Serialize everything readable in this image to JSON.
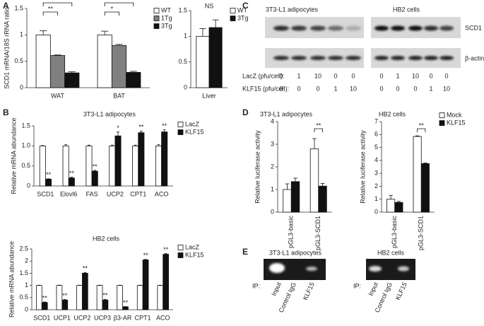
{
  "chart_data": [
    {
      "type": "bar",
      "panel": "A",
      "ylabel": "SCD1 mRNA/18S rRNA ratio",
      "categories": [
        "WAT",
        "BAT"
      ],
      "series": [
        {
          "name": "WT",
          "color": "#ffffff",
          "values": [
            1.0,
            1.0
          ],
          "errors": [
            0.08,
            0.07
          ]
        },
        {
          "name": "1Tg",
          "color": "#808080",
          "values": [
            0.61,
            0.8
          ],
          "errors": [
            0.01,
            0.02
          ]
        },
        {
          "name": "3Tg",
          "color": "#111111",
          "values": [
            0.28,
            0.29
          ],
          "errors": [
            0.02,
            0.02
          ]
        }
      ],
      "ylim": [
        0,
        1.5
      ],
      "yticks": [
        0,
        0.5,
        1,
        1.5
      ],
      "annotations": [
        "**",
        "**",
        "**",
        "*"
      ]
    },
    {
      "type": "bar",
      "categories": [
        "Liver"
      ],
      "series": [
        {
          "name": "WT",
          "color": "#ffffff",
          "values": [
            1.0
          ],
          "errors": [
            0.15
          ]
        },
        {
          "name": "3Tg",
          "color": "#111111",
          "values": [
            1.17
          ],
          "errors": [
            0.15
          ]
        }
      ],
      "ylim": [
        0,
        1.5
      ],
      "yticks": [
        0,
        0.5,
        1,
        1.5
      ],
      "annotations": [
        "NS"
      ]
    },
    {
      "type": "bar",
      "panel": "B",
      "title": "3T3-L1 adipocytes",
      "ylabel": "Relative mRNA abundance",
      "categories": [
        "SCD1",
        "Elovl6",
        "FAS",
        "UCP2",
        "CPT1",
        "ACO"
      ],
      "series": [
        {
          "name": "LacZ",
          "color": "#ffffff",
          "values": [
            1.0,
            1.0,
            1.0,
            1.0,
            1.0,
            1.0
          ],
          "errors": [
            0.01,
            0.03,
            0.02,
            0.02,
            0.02,
            0.03
          ]
        },
        {
          "name": "KLF15",
          "color": "#111111",
          "values": [
            0.17,
            0.2,
            0.37,
            1.25,
            1.33,
            1.35
          ],
          "errors": [
            0.01,
            0.02,
            0.02,
            0.1,
            0.04,
            0.05
          ],
          "significance": [
            "**",
            "**",
            "**",
            "*",
            "**",
            "**"
          ]
        }
      ],
      "ylim": [
        0,
        1.5
      ],
      "yticks": [
        0,
        0.5,
        {
          "value": 1,
          "label": "1.0"
        },
        1.5
      ]
    },
    {
      "type": "bar",
      "title": "HB2 cells",
      "ylabel": "Relative mRNA abundance",
      "categories": [
        "SCD1",
        "UCP1",
        "UCP2",
        "UCP3",
        "β3-AR",
        "CPT1",
        "ACO"
      ],
      "series": [
        {
          "name": "LacZ",
          "color": "#ffffff",
          "values": [
            1.0,
            1.0,
            1.0,
            1.0,
            1.0,
            1.0,
            1.0
          ],
          "errors": [
            0.01,
            0.01,
            0.01,
            0.01,
            0.01,
            0.01,
            0.01
          ]
        },
        {
          "name": "KLF15",
          "color": "#111111",
          "values": [
            0.3,
            0.4,
            1.5,
            0.4,
            0.12,
            2.05,
            2.28
          ],
          "errors": [
            0.02,
            0.02,
            0.03,
            0.03,
            0.01,
            0.02,
            0.03
          ],
          "significance": [
            "**",
            "**",
            "**",
            "**",
            "**",
            "**",
            "**"
          ]
        }
      ],
      "ylim": [
        0,
        2.5
      ],
      "yticks": [
        0,
        0.5,
        1,
        1.5,
        2,
        2.5
      ]
    },
    {
      "type": "bar",
      "panel": "D",
      "title": "3T3-L1 adipocytes",
      "ylabel": "Relative luciferase activity",
      "categories": [
        "pGL3-basic",
        "pGL3-SCD1"
      ],
      "series": [
        {
          "color": "#ffffff",
          "values": [
            1.0,
            2.8
          ],
          "errors": [
            0.25,
            0.45
          ]
        },
        {
          "color": "#111111",
          "values": [
            1.35,
            1.15
          ],
          "errors": [
            0.15,
            0.12
          ]
        }
      ],
      "ylim": [
        0,
        4
      ],
      "yticks": [
        0,
        1,
        2,
        3,
        4
      ],
      "annotations": [
        "**"
      ]
    },
    {
      "type": "bar",
      "title": "HB2 cells",
      "ylabel": "Relative luciferase activity",
      "categories": [
        "pGL3-basic",
        "pGL3-SCD1"
      ],
      "series": [
        {
          "name": "Mock",
          "color": "#ffffff",
          "values": [
            1.0,
            5.85
          ],
          "errors": [
            0.3,
            0.05
          ]
        },
        {
          "name": "KLF15",
          "color": "#111111",
          "values": [
            0.75,
            3.75
          ],
          "errors": [
            0.08,
            0.05
          ]
        }
      ],
      "ylim": [
        0,
        7
      ],
      "yticks": [
        0,
        1,
        2,
        3,
        4,
        5,
        6,
        7
      ],
      "annotations": [
        "**"
      ]
    }
  ],
  "blot": {
    "panel": "C",
    "left_title": "3T3-L1 adipocytes",
    "right_title": "HB2 cells",
    "bands": [
      "SCD1",
      "β-actin"
    ],
    "rows": [
      {
        "label": "LacZ (pfu/cell):",
        "left": [
          0,
          1,
          10,
          0,
          0
        ],
        "right": [
          0,
          1,
          10,
          0,
          0
        ]
      },
      {
        "label": "KLF15 (pfu/cell):",
        "left": [
          0,
          0,
          0,
          1,
          10
        ],
        "right": [
          0,
          0,
          0,
          1,
          10
        ]
      }
    ]
  },
  "gel": {
    "panel": "E",
    "left_title": "3T3-L1 adipocytes",
    "right_title": "HB2 cells",
    "ip": "IP:",
    "lanes": [
      "Input",
      "Control IgG",
      "KLF15"
    ]
  }
}
